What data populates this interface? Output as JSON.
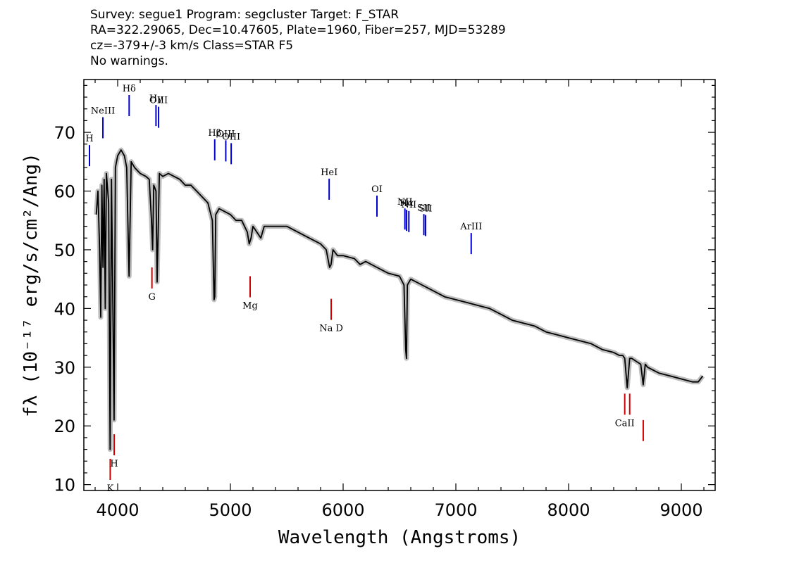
{
  "header": {
    "line1": "Survey: segue1 Program: segcluster Target: F_STAR",
    "line2": "RA=322.29065, Dec=10.47605, Plate=1960, Fiber=257, MJD=53289",
    "line3": "cz=-379+/-3 km/s Class=STAR F5",
    "line4": "No warnings."
  },
  "chart_data": {
    "type": "line",
    "title": "",
    "xlabel": "Wavelength (Angstroms)",
    "ylabel": "fλ (10⁻¹⁷ erg/s/cm²/Ang)",
    "xlim": [
      3700,
      9300
    ],
    "ylim": [
      9,
      79
    ],
    "x_ticks": [
      4000,
      5000,
      6000,
      7000,
      8000,
      9000
    ],
    "y_ticks": [
      10,
      20,
      30,
      40,
      50,
      60,
      70
    ],
    "grid": false,
    "series": [
      {
        "name": "",
        "color": "#000000",
        "error_band_color": "#bdbdbd",
        "x": [
          3810,
          3825,
          3840,
          3850,
          3860,
          3870,
          3880,
          3890,
          3900,
          3920,
          3933,
          3945,
          3955,
          3968,
          3980,
          4000,
          4030,
          4060,
          4080,
          4101,
          4120,
          4150,
          4200,
          4250,
          4280,
          4300,
          4310,
          4320,
          4340,
          4350,
          4370,
          4400,
          4450,
          4500,
          4550,
          4600,
          4650,
          4700,
          4750,
          4800,
          4840,
          4855,
          4861,
          4870,
          4900,
          4950,
          5000,
          5050,
          5100,
          5150,
          5167,
          5183,
          5200,
          5270,
          5300,
          5400,
          5500,
          5600,
          5700,
          5800,
          5850,
          5880,
          5893,
          5910,
          5950,
          6000,
          6100,
          6150,
          6200,
          6300,
          6400,
          6500,
          6540,
          6555,
          6562,
          6570,
          6600,
          6700,
          6800,
          6900,
          7000,
          7100,
          7200,
          7300,
          7400,
          7500,
          7600,
          7700,
          7800,
          7900,
          8000,
          8100,
          8200,
          8300,
          8400,
          8450,
          8480,
          8498,
          8520,
          8542,
          8560,
          8600,
          8640,
          8662,
          8680,
          8700,
          8800,
          8900,
          9000,
          9100,
          9150,
          9190
        ],
        "y": [
          56,
          60,
          50,
          38.5,
          61,
          47,
          62,
          40,
          63,
          58,
          16,
          62,
          45,
          21,
          64,
          66,
          67,
          66,
          64,
          45.5,
          65,
          64,
          63,
          62.5,
          62,
          55,
          50,
          61,
          60,
          44.5,
          63,
          62.5,
          63,
          62.5,
          62,
          61,
          61,
          60,
          59,
          58,
          55,
          41.5,
          42,
          56,
          57,
          56.5,
          56,
          55,
          55,
          53,
          51,
          52,
          54,
          52,
          54,
          54,
          54,
          53,
          52,
          51,
          50,
          47,
          47.5,
          50,
          49,
          49,
          48.5,
          47.5,
          48,
          47,
          46,
          45.5,
          44,
          33,
          31.5,
          44,
          45,
          44,
          43,
          42,
          41.5,
          41,
          40.5,
          40,
          39,
          38,
          37.5,
          37,
          36,
          35.5,
          35,
          34.5,
          34,
          33,
          32.5,
          32,
          32,
          31.5,
          26.5,
          31.5,
          31.5,
          31,
          30.5,
          27,
          30.5,
          30,
          29,
          28.5,
          28,
          27.5,
          27.5,
          28.5
        ]
      }
    ],
    "annotations": [
      {
        "label": "H",
        "x": 3750,
        "color": "#0000cc",
        "side": "top"
      },
      {
        "label": "NeIII",
        "x": 3869,
        "color": "#0000cc",
        "side": "top"
      },
      {
        "label": "Hδ",
        "x": 4102,
        "color": "#0000cc",
        "side": "top"
      },
      {
        "label": "Hγ",
        "x": 4340,
        "color": "#0000cc",
        "side": "top"
      },
      {
        "label": "OIII",
        "x": 4363,
        "color": "#0000cc",
        "side": "top"
      },
      {
        "label": "Hβ",
        "x": 4861,
        "color": "#0000cc",
        "side": "top"
      },
      {
        "label": "OIII",
        "x": 4959,
        "color": "#0000cc",
        "side": "top"
      },
      {
        "label": "OIII",
        "x": 5007,
        "color": "#0000cc",
        "side": "top"
      },
      {
        "label": "HeI",
        "x": 5876,
        "color": "#0000cc",
        "side": "top"
      },
      {
        "label": "OI",
        "x": 6300,
        "color": "#0000cc",
        "side": "top"
      },
      {
        "label": "NII",
        "x": 6548,
        "color": "#0000cc",
        "side": "top"
      },
      {
        "label": "Hα",
        "x": 6563,
        "color": "#0000cc",
        "side": "top"
      },
      {
        "label": "NII",
        "x": 6583,
        "color": "#0000cc",
        "side": "top"
      },
      {
        "label": "SII",
        "x": 6716,
        "color": "#0000cc",
        "side": "top"
      },
      {
        "label": "SII",
        "x": 6731,
        "color": "#0000cc",
        "side": "top"
      },
      {
        "label": "ArIII",
        "x": 7136,
        "color": "#0000cc",
        "side": "top"
      },
      {
        "label": "K",
        "x": 3934,
        "color": "#cc0000",
        "side": "bottom"
      },
      {
        "label": "H",
        "x": 3969,
        "color": "#cc0000",
        "side": "bottom"
      },
      {
        "label": "G",
        "x": 4304,
        "color": "#cc0000",
        "side": "bottom"
      },
      {
        "label": "Mg",
        "x": 5175,
        "color": "#cc0000",
        "side": "bottom"
      },
      {
        "label": "Na D",
        "x": 5894,
        "color": "#cc0000",
        "side": "bottom"
      },
      {
        "label": "CaII",
        "x": 8498,
        "color": "#cc0000",
        "side": "bottom"
      },
      {
        "label": "",
        "x": 8542,
        "color": "#cc0000",
        "side": "bottom"
      },
      {
        "label": "",
        "x": 8662,
        "color": "#cc0000",
        "side": "bottom"
      }
    ]
  }
}
